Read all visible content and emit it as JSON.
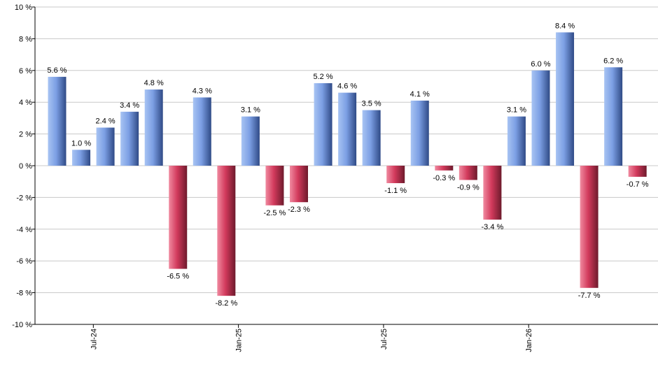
{
  "chart_data": {
    "type": "bar",
    "title": "",
    "xlabel": "",
    "ylabel": "",
    "y_unit_suffix": " %",
    "ylim": [
      -10,
      10
    ],
    "yticks": [
      10,
      8,
      6,
      4,
      2,
      0,
      -2,
      -4,
      -6,
      -8,
      -10
    ],
    "grid": true,
    "legend": "none",
    "positive_color": "#7a9fe0",
    "negative_color": "#d1405f",
    "x_tick_labels": [
      {
        "label": "Jul-24",
        "after_bar_index": 1
      },
      {
        "label": "Jan-25",
        "after_bar_index": 7
      },
      {
        "label": "Jul-25",
        "after_bar_index": 13
      },
      {
        "label": "Jan-26",
        "after_bar_index": 19
      }
    ],
    "values": [
      5.6,
      1.0,
      2.4,
      3.4,
      4.8,
      -6.5,
      4.3,
      -8.2,
      3.1,
      -2.5,
      -2.3,
      5.2,
      4.6,
      3.5,
      -1.1,
      4.1,
      -0.3,
      -0.9,
      -3.4,
      3.1,
      6.0,
      8.4,
      -7.7,
      6.2,
      -0.7
    ],
    "data_labels": [
      "5.6 %",
      "1.0 %",
      "2.4 %",
      "3.4 %",
      "4.8 %",
      "-6.5 %",
      "4.3 %",
      "-8.2 %",
      "3.1 %",
      "-2.5 %",
      "-2.3 %",
      "5.2 %",
      "4.6 %",
      "3.5 %",
      "-1.1 %",
      "4.1 %",
      "-0.3 %",
      "-0.9 %",
      "-3.4 %",
      "3.1 %",
      "6.0 %",
      "8.4 %",
      "-7.7 %",
      "6.2 %",
      "-0.7 %"
    ]
  }
}
